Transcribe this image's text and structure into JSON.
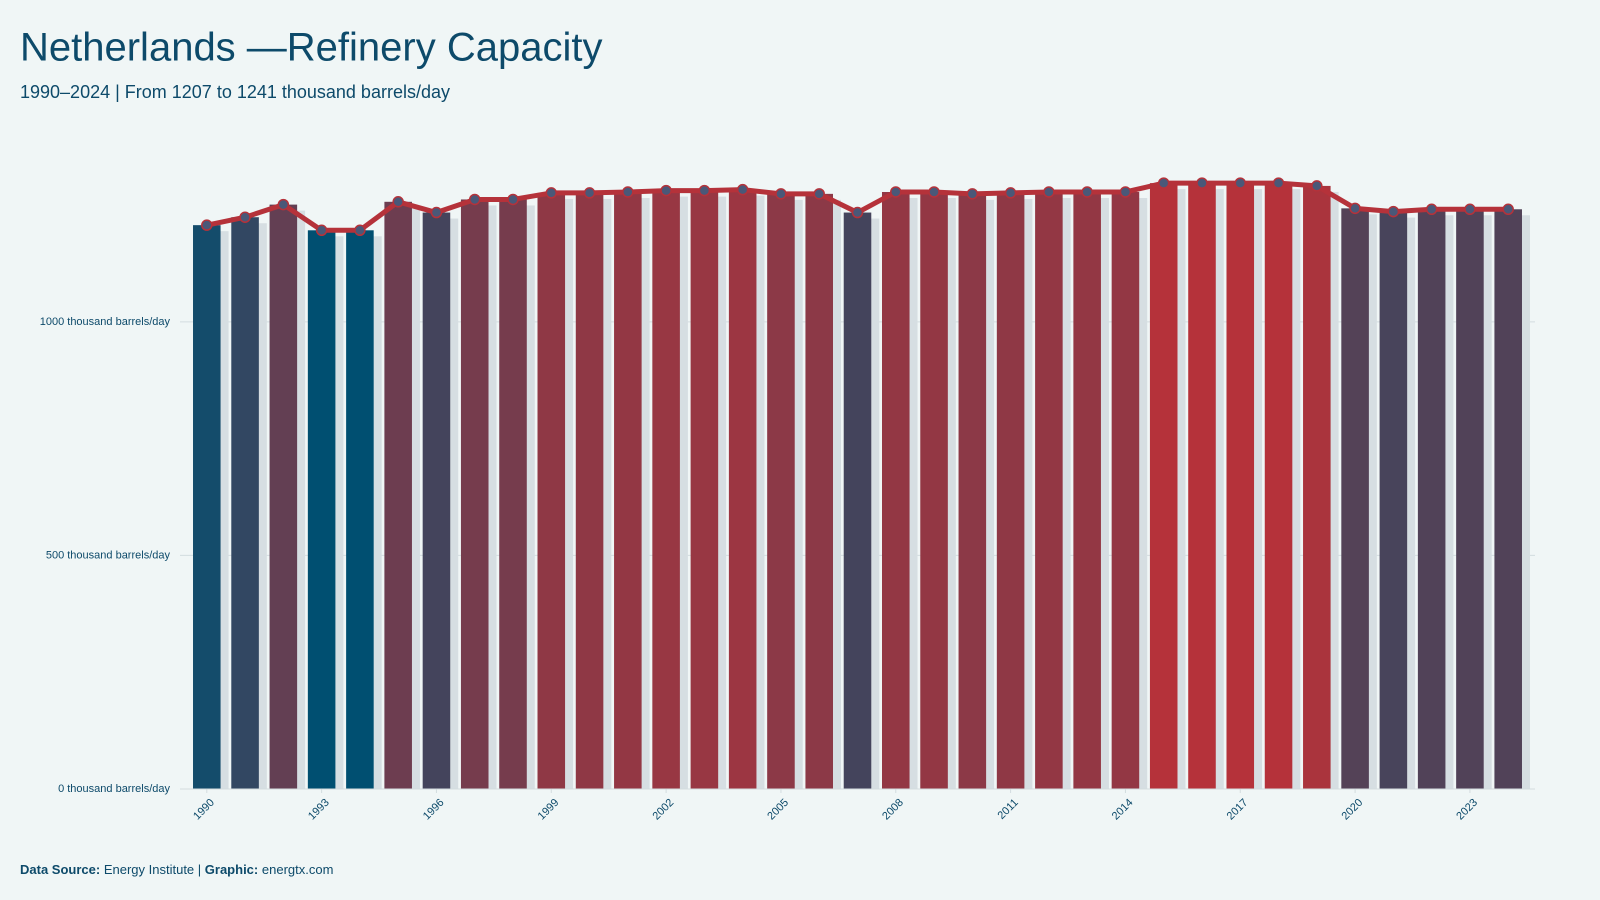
{
  "chart_data": {
    "type": "bar",
    "title": "Netherlands —Refinery Capacity",
    "subtitle": "1990–2024 | From 1207 to 1241 thousand barrels/day",
    "source_label": "Data Source:",
    "source": "Energy Institute |",
    "graphic_label": "Graphic:",
    "graphic": "energtx.com",
    "x": [
      1990,
      1991,
      1992,
      1993,
      1994,
      1995,
      1996,
      1997,
      1998,
      1999,
      2000,
      2001,
      2002,
      2003,
      2004,
      2005,
      2006,
      2007,
      2008,
      2009,
      2010,
      2011,
      2012,
      2013,
      2014,
      2015,
      2016,
      2017,
      2018,
      2019,
      2020,
      2021,
      2022,
      2023,
      2024
    ],
    "values": [
      1207,
      1224,
      1251,
      1196,
      1196,
      1257,
      1234,
      1262,
      1262,
      1276,
      1276,
      1278,
      1281,
      1281,
      1283,
      1274,
      1274,
      1234,
      1278,
      1278,
      1274,
      1276,
      1278,
      1278,
      1278,
      1297,
      1297,
      1297,
      1297,
      1291,
      1243,
      1236,
      1241,
      1241,
      1241
    ],
    "xlim": [
      1989.3,
      2024.7
    ],
    "xticks": [
      1990,
      1993,
      1996,
      1999,
      2002,
      2005,
      2008,
      2011,
      2014,
      2017,
      2020,
      2023
    ],
    "ylim": [
      0,
      1400
    ],
    "yticks": [
      {
        "value": 0,
        "label": "0 thousand barrels/day"
      },
      {
        "value": 500,
        "label": "500 thousand barrels/day"
      },
      {
        "value": 1000,
        "label": "1000 thousand barrels/day"
      }
    ],
    "grid": true,
    "colorscale": [
      "#004f71",
      "#b5323a"
    ],
    "line_color": "#b5323a",
    "marker_color": "#4a5878"
  }
}
